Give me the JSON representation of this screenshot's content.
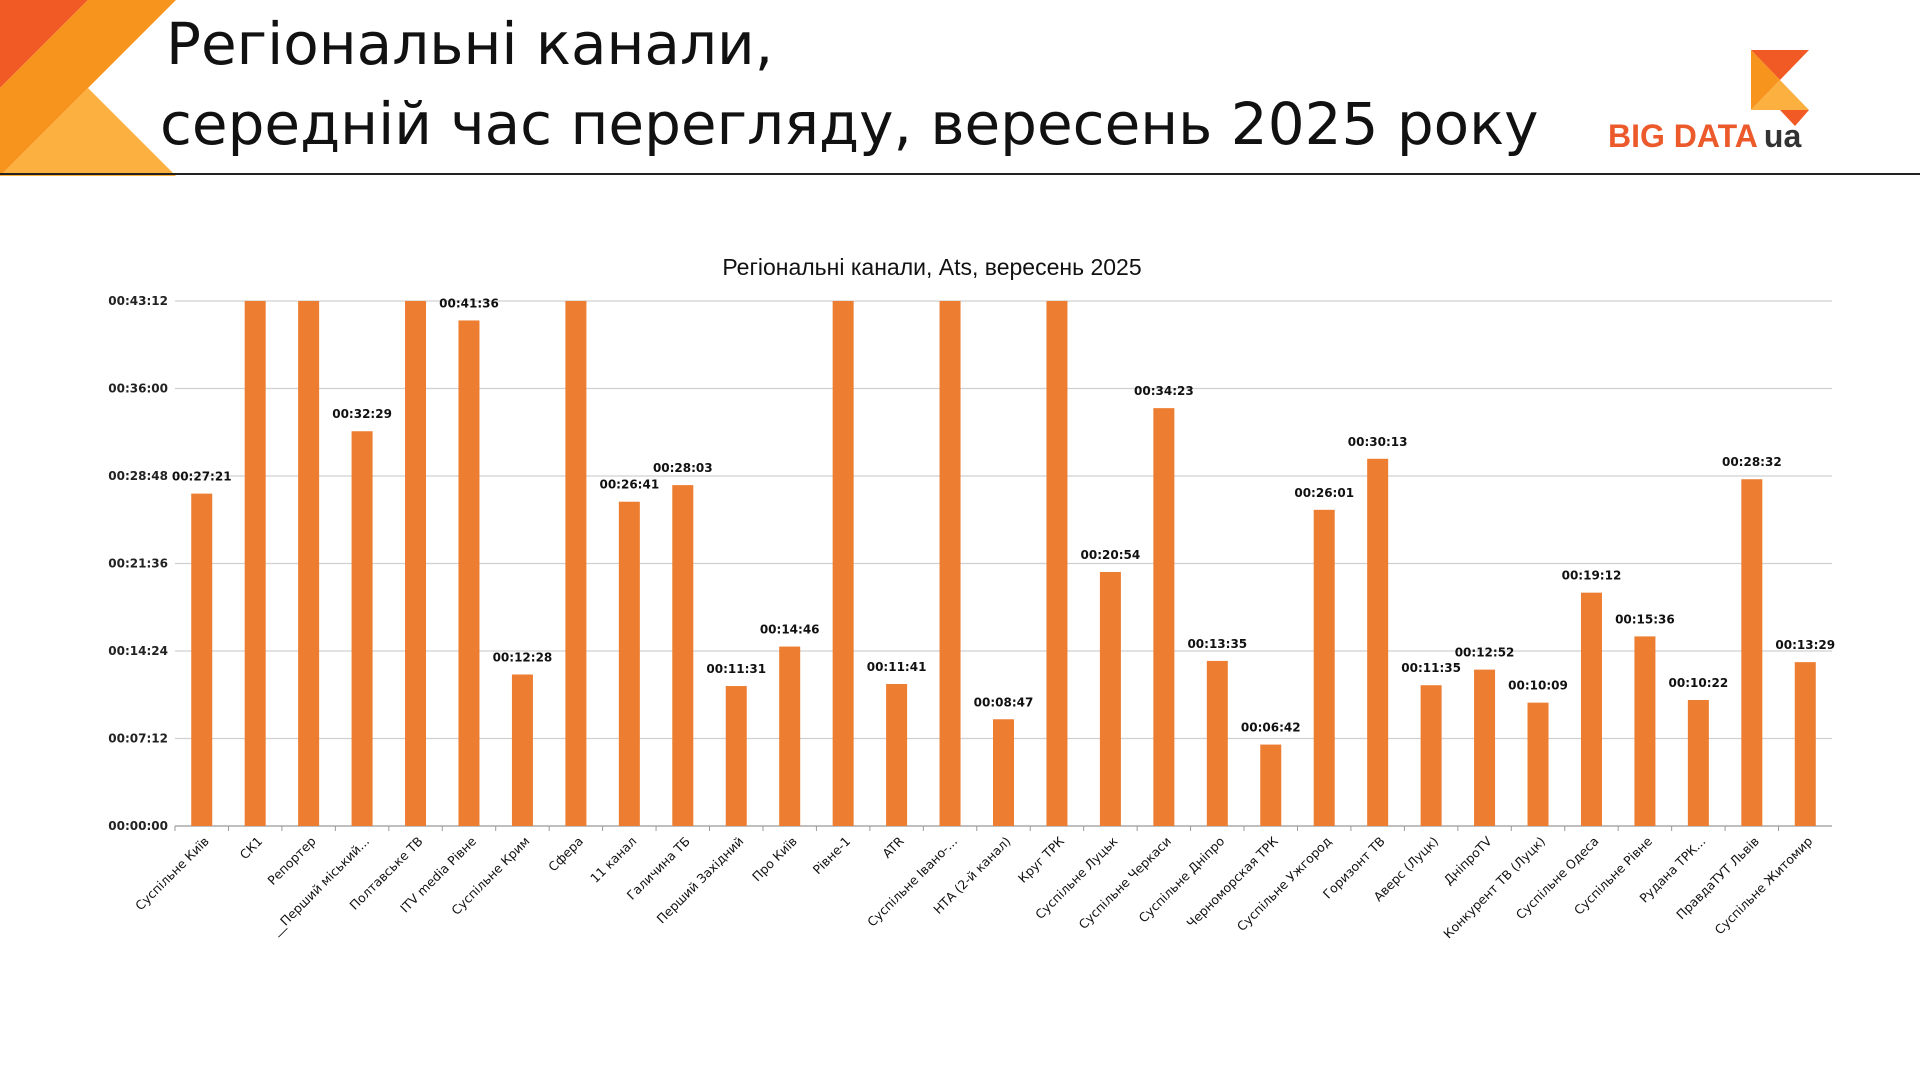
{
  "header": {
    "title_line1": "Регіональні канали,",
    "title_line2": "середній час перегляду, вересень 2025 року",
    "logo_text": "BIG DATA",
    "logo_suffix": "ua"
  },
  "colors": {
    "bar": "#ed7d31",
    "grid": "#d0d0d0",
    "corner_dark": "#f15a24",
    "corner_light": "#fbb040",
    "corner_mid": "#f7941d"
  },
  "chart_data": {
    "type": "bar",
    "title": "Регіональні канали, Ats, вересень 2025",
    "xlabel": "",
    "ylabel": "",
    "ylim_seconds": [
      0,
      2592
    ],
    "yticks": [
      "00:00:00",
      "00:07:12",
      "00:14:24",
      "00:21:36",
      "00:28:48",
      "00:36:00",
      "00:43:12"
    ],
    "legend": "none",
    "grid": true,
    "categories": [
      "Суспільне Київ",
      "СК1",
      "Репортер",
      "__Перший міський...",
      "Полтавське ТВ",
      "ITV media Рівне",
      "Суспільне Крим",
      "Сфера",
      "11 канал",
      "Галичина ТБ",
      "Перший Західний",
      "Про Київ",
      "Рівне-1",
      "ATR",
      "Суспільне Івано-...",
      "НТА (2-й канал)",
      "Круг ТРК",
      "Суспільне Луцьк",
      "Суспільне Черкаси",
      "Суспільне Дніпро",
      "Черноморская ТРК",
      "Суспільне Ужгород",
      "Горизонт ТВ",
      "Аверс (Луцк)",
      "ДніпроTV",
      "Конкурент ТВ (Луцк)",
      "Суспільне Одеса",
      "Суспільне Рівне",
      "Рудана ТРК...",
      "ПравдаТУТ Львів",
      "Суспільне Житомир"
    ],
    "labels": [
      "00:27:21",
      "",
      "",
      "00:32:29",
      "",
      "00:41:36",
      "00:12:28",
      "",
      "00:26:41",
      "00:28:03",
      "00:11:31",
      "00:14:46",
      "",
      "00:11:41",
      "",
      "00:08:47",
      "",
      "00:20:54",
      "00:34:23",
      "00:13:35",
      "00:06:42",
      "00:26:01",
      "00:30:13",
      "00:11:35",
      "00:12:52",
      "00:10:09",
      "00:19:12",
      "00:15:36",
      "00:10:22",
      "00:28:32",
      "00:13:29"
    ],
    "values_seconds": [
      1641,
      2592,
      2592,
      1949,
      2592,
      2496,
      748,
      2592,
      1601,
      1683,
      691,
      886,
      2592,
      701,
      2592,
      527,
      2592,
      1254,
      2063,
      815,
      402,
      1561,
      1813,
      695,
      772,
      609,
      1152,
      936,
      622,
      1712,
      809
    ],
    "clipped": [
      false,
      true,
      true,
      false,
      true,
      false,
      false,
      true,
      false,
      false,
      false,
      false,
      true,
      false,
      true,
      false,
      true,
      false,
      false,
      false,
      false,
      false,
      false,
      false,
      false,
      false,
      false,
      false,
      false,
      false,
      false
    ]
  }
}
